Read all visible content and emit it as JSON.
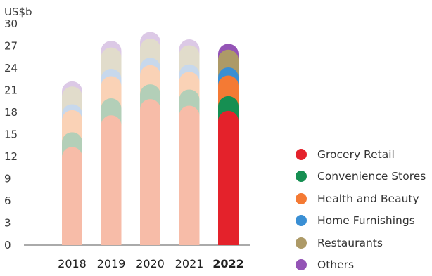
{
  "chart_data": {
    "type": "bar",
    "stacked": true,
    "ylabel": "US$b",
    "ylim": [
      0,
      30
    ],
    "yticks": [
      0,
      3,
      6,
      9,
      12,
      15,
      18,
      21,
      24,
      27,
      30
    ],
    "categories": [
      "2018",
      "2019",
      "2020",
      "2021",
      "2022"
    ],
    "highlight_category": "2022",
    "series": [
      {
        "name": "Grocery Retail",
        "color": "#e4222b",
        "faded_color": "#f7bca8",
        "values": [
          13.3,
          17.6,
          19.8,
          18.9,
          18.2
        ]
      },
      {
        "name": "Convenience Stores",
        "color": "#168f52",
        "faded_color": "#b3cfb8",
        "values": [
          2.0,
          2.3,
          2.0,
          2.2,
          2.0
        ]
      },
      {
        "name": "Health and Beauty",
        "color": "#f47a34",
        "faded_color": "#fad2b6",
        "values": [
          3.0,
          3.0,
          2.6,
          2.4,
          2.8
        ]
      },
      {
        "name": "Home Furnishings",
        "color": "#3a8fd4",
        "faded_color": "#c7d8ec",
        "values": [
          0.8,
          1.0,
          1.0,
          1.0,
          1.1
        ]
      },
      {
        "name": "Restaurants",
        "color": "#ad9a67",
        "faded_color": "#e1dccb",
        "values": [
          2.4,
          2.9,
          2.6,
          2.6,
          2.4
        ]
      },
      {
        "name": "Others",
        "color": "#9454b6",
        "faded_color": "#dcc9e6",
        "values": [
          0.7,
          0.9,
          0.9,
          0.8,
          0.8
        ]
      }
    ],
    "grid": false,
    "legend_position": "right"
  }
}
